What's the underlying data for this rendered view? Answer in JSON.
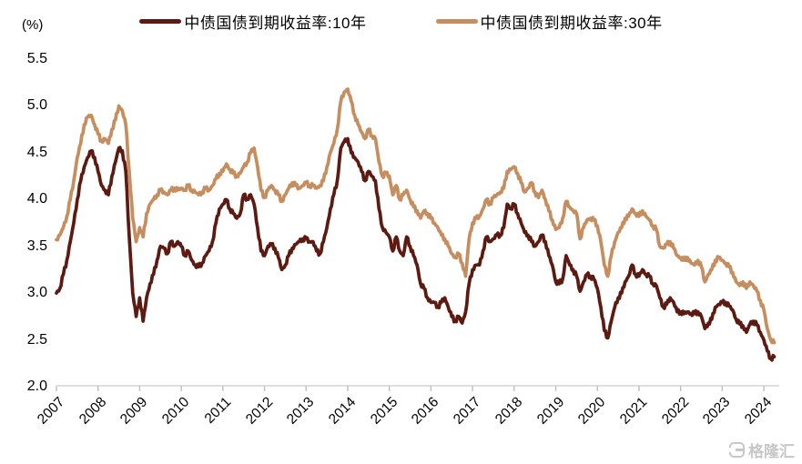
{
  "unit_label": "(%)",
  "watermark": {
    "icon": "gelonghui-logo",
    "text": "格隆汇"
  },
  "chart_data": {
    "type": "line",
    "title": "",
    "xlabel": "",
    "ylabel": "(%)",
    "grid": "off",
    "legend_position": "top-center",
    "ylim": [
      2.0,
      5.5
    ],
    "y_tick_labels": [
      "5.5",
      "5.0",
      "4.5",
      "4.0",
      "3.5",
      "3.0",
      "2.5",
      "2.0"
    ],
    "x_tick_labels": [
      "2007",
      "2008",
      "2009",
      "2010",
      "2011",
      "2012",
      "2013",
      "2014",
      "2015",
      "2016",
      "2017",
      "2018",
      "2019",
      "2020",
      "2021",
      "2022",
      "2023",
      "2024"
    ],
    "x_start": "2007-01",
    "x_end": "2024-04",
    "x_step_months": 1,
    "axis_color": "#d6d6d6",
    "series": [
      {
        "name": "中债国债到期收益率:10年",
        "color": "#5C1A11",
        "values": [
          3.0,
          3.05,
          3.2,
          3.35,
          3.55,
          3.75,
          4.0,
          4.2,
          4.35,
          4.45,
          4.52,
          4.45,
          4.3,
          4.15,
          4.1,
          4.05,
          4.25,
          4.4,
          4.55,
          4.52,
          4.3,
          3.6,
          3.0,
          2.75,
          2.95,
          2.7,
          2.95,
          3.1,
          3.2,
          3.35,
          3.5,
          3.48,
          3.42,
          3.55,
          3.5,
          3.55,
          3.5,
          3.4,
          3.45,
          3.35,
          3.3,
          3.28,
          3.32,
          3.4,
          3.45,
          3.55,
          3.75,
          3.9,
          3.95,
          4.0,
          3.9,
          3.85,
          3.8,
          3.85,
          4.05,
          4.0,
          4.05,
          3.95,
          3.7,
          3.45,
          3.4,
          3.5,
          3.52,
          3.48,
          3.38,
          3.25,
          3.3,
          3.4,
          3.48,
          3.52,
          3.55,
          3.58,
          3.58,
          3.55,
          3.55,
          3.45,
          3.42,
          3.55,
          3.7,
          3.9,
          4.05,
          4.2,
          4.55,
          4.62,
          4.65,
          4.5,
          4.45,
          4.4,
          4.3,
          4.2,
          4.3,
          4.25,
          4.2,
          3.9,
          3.7,
          3.65,
          3.6,
          3.45,
          3.6,
          3.45,
          3.4,
          3.6,
          3.5,
          3.4,
          3.3,
          3.1,
          3.05,
          2.95,
          2.9,
          2.9,
          2.85,
          2.9,
          2.95,
          2.85,
          2.75,
          2.7,
          2.75,
          2.68,
          2.8,
          3.1,
          3.25,
          3.3,
          3.3,
          3.45,
          3.6,
          3.55,
          3.58,
          3.62,
          3.62,
          3.7,
          3.95,
          3.9,
          3.95,
          3.85,
          3.75,
          3.65,
          3.62,
          3.55,
          3.5,
          3.55,
          3.62,
          3.55,
          3.4,
          3.3,
          3.12,
          3.1,
          3.15,
          3.4,
          3.3,
          3.25,
          3.18,
          3.02,
          3.12,
          3.2,
          3.18,
          3.15,
          3.05,
          2.85,
          2.6,
          2.52,
          2.7,
          2.85,
          2.95,
          3.0,
          3.12,
          3.18,
          3.3,
          3.2,
          3.18,
          3.25,
          3.2,
          3.18,
          3.1,
          3.08,
          2.95,
          2.85,
          2.88,
          2.95,
          2.9,
          2.8,
          2.8,
          2.78,
          2.8,
          2.78,
          2.78,
          2.8,
          2.75,
          2.62,
          2.68,
          2.72,
          2.85,
          2.88,
          2.9,
          2.9,
          2.86,
          2.82,
          2.72,
          2.67,
          2.65,
          2.58,
          2.67,
          2.7,
          2.66,
          2.58,
          2.5,
          2.38,
          2.3,
          2.32
        ]
      },
      {
        "name": "中债国债到期收益率:30年",
        "color": "#C68D5E",
        "values": [
          3.57,
          3.62,
          3.7,
          3.82,
          4.0,
          4.2,
          4.45,
          4.6,
          4.8,
          4.88,
          4.9,
          4.8,
          4.7,
          4.62,
          4.65,
          4.6,
          4.75,
          4.85,
          5.0,
          4.95,
          4.8,
          4.3,
          3.8,
          3.55,
          3.7,
          3.6,
          3.85,
          3.95,
          4.0,
          4.05,
          4.1,
          4.08,
          4.05,
          4.1,
          4.12,
          4.1,
          4.12,
          4.1,
          4.15,
          4.1,
          4.08,
          4.05,
          4.08,
          4.12,
          4.1,
          4.15,
          4.22,
          4.28,
          4.3,
          4.38,
          4.32,
          4.28,
          4.25,
          4.28,
          4.35,
          4.4,
          4.5,
          4.55,
          4.35,
          4.1,
          4.02,
          4.1,
          4.15,
          4.1,
          4.05,
          3.98,
          4.05,
          4.12,
          4.18,
          4.15,
          4.12,
          4.15,
          4.18,
          4.15,
          4.15,
          4.12,
          4.15,
          4.2,
          4.35,
          4.5,
          4.6,
          4.75,
          5.05,
          5.15,
          5.18,
          5.05,
          4.9,
          4.8,
          4.72,
          4.65,
          4.75,
          4.68,
          4.65,
          4.4,
          4.25,
          4.28,
          4.25,
          4.05,
          4.15,
          4.0,
          4.05,
          4.1,
          4.0,
          3.92,
          3.88,
          3.8,
          3.88,
          3.85,
          3.8,
          3.75,
          3.7,
          3.62,
          3.58,
          3.5,
          3.42,
          3.38,
          3.42,
          3.32,
          3.18,
          3.58,
          3.75,
          3.8,
          3.82,
          3.9,
          4.0,
          3.95,
          4.02,
          4.05,
          4.08,
          4.12,
          4.3,
          4.32,
          4.35,
          4.28,
          4.18,
          4.08,
          4.12,
          4.18,
          4.08,
          4.02,
          4.1,
          4.0,
          3.88,
          3.78,
          3.68,
          3.7,
          3.8,
          3.98,
          3.92,
          3.88,
          3.85,
          3.58,
          3.7,
          3.78,
          3.8,
          3.78,
          3.72,
          3.55,
          3.3,
          3.18,
          3.4,
          3.55,
          3.65,
          3.7,
          3.8,
          3.82,
          3.9,
          3.85,
          3.82,
          3.88,
          3.82,
          3.78,
          3.72,
          3.68,
          3.5,
          3.48,
          3.52,
          3.55,
          3.48,
          3.4,
          3.38,
          3.35,
          3.38,
          3.32,
          3.3,
          3.35,
          3.28,
          3.12,
          3.2,
          3.25,
          3.35,
          3.38,
          3.35,
          3.32,
          3.28,
          3.22,
          3.12,
          3.08,
          3.12,
          3.05,
          3.12,
          3.08,
          3.02,
          2.92,
          2.82,
          2.62,
          2.5,
          2.47
        ]
      }
    ]
  }
}
